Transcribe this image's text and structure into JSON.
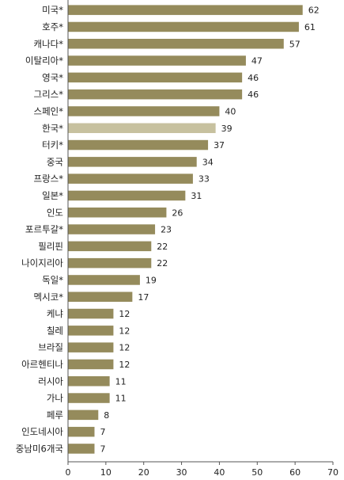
{
  "chart_data": {
    "type": "bar",
    "orientation": "horizontal",
    "categories": [
      "미국*",
      "호주*",
      "캐나다*",
      "이탈리아*",
      "영국*",
      "그리스*",
      "스페인*",
      "한국*",
      "터키*",
      "중국",
      "프랑스*",
      "일본*",
      "인도",
      "포르투갈*",
      "필리핀",
      "나이지리아",
      "독일*",
      "멕시코*",
      "케냐",
      "칠레",
      "브라질",
      "아르헨티나",
      "러시아",
      "가나",
      "페루",
      "인도네시아",
      "중남미6개국"
    ],
    "values": [
      62,
      61,
      57,
      47,
      46,
      46,
      40,
      39,
      37,
      34,
      33,
      31,
      26,
      23,
      22,
      22,
      19,
      17,
      12,
      12,
      12,
      12,
      11,
      11,
      8,
      7,
      7
    ],
    "highlight_index": 7,
    "xlim": [
      0,
      70
    ],
    "xticks": [
      0,
      10,
      20,
      30,
      40,
      50,
      60,
      70
    ],
    "title": "",
    "xlabel": "",
    "ylabel": "",
    "grid": false,
    "colors": {
      "bar": "#958b5c",
      "highlight": "#c7c19f",
      "axis": "#555555"
    }
  }
}
